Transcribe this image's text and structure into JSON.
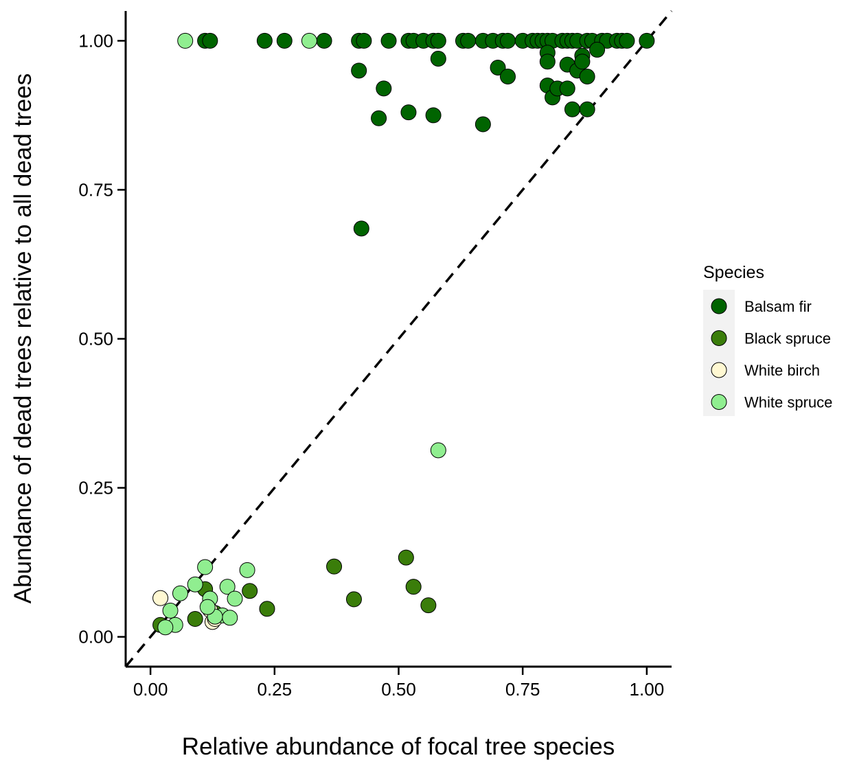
{
  "chart_data": {
    "type": "scatter",
    "title": "",
    "xlabel": "Relative abundance of focal tree species",
    "ylabel": "Abundance of dead trees relative to all dead trees",
    "xlim": [
      -0.05,
      1.05
    ],
    "ylim": [
      -0.05,
      1.05
    ],
    "x_ticks": [
      "0.00",
      "0.25",
      "0.50",
      "0.75",
      "1.00"
    ],
    "y_ticks": [
      "0.00",
      "0.25",
      "0.50",
      "0.75",
      "1.00"
    ],
    "x_tick_values": [
      0,
      0.25,
      0.5,
      0.75,
      1.0
    ],
    "y_tick_values": [
      0,
      0.25,
      0.5,
      0.75,
      1.0
    ],
    "reference_line": {
      "type": "identity",
      "style": "dashed",
      "color": "#000000"
    },
    "grid": false,
    "legend": {
      "title": "Species",
      "placement": "right"
    },
    "series": [
      {
        "name": "Balsam fir",
        "color": "#006400",
        "points": [
          [
            0.11,
            1.0
          ],
          [
            0.12,
            1.0
          ],
          [
            0.23,
            1.0
          ],
          [
            0.27,
            1.0
          ],
          [
            0.35,
            1.0
          ],
          [
            0.42,
            1.0
          ],
          [
            0.43,
            1.0
          ],
          [
            0.48,
            1.0
          ],
          [
            0.52,
            1.0
          ],
          [
            0.53,
            1.0
          ],
          [
            0.55,
            1.0
          ],
          [
            0.57,
            1.0
          ],
          [
            0.58,
            1.0
          ],
          [
            0.63,
            1.0
          ],
          [
            0.64,
            1.0
          ],
          [
            0.67,
            1.0
          ],
          [
            0.69,
            1.0
          ],
          [
            0.71,
            1.0
          ],
          [
            0.72,
            1.0
          ],
          [
            0.75,
            1.0
          ],
          [
            0.77,
            1.0
          ],
          [
            0.78,
            1.0
          ],
          [
            0.79,
            1.0
          ],
          [
            0.8,
            1.0
          ],
          [
            0.81,
            1.0
          ],
          [
            0.83,
            1.0
          ],
          [
            0.84,
            1.0
          ],
          [
            0.85,
            1.0
          ],
          [
            0.86,
            1.0
          ],
          [
            0.88,
            1.0
          ],
          [
            0.89,
            1.0
          ],
          [
            0.91,
            1.0
          ],
          [
            0.92,
            1.0
          ],
          [
            0.94,
            1.0
          ],
          [
            0.95,
            1.0
          ],
          [
            0.96,
            1.0
          ],
          [
            1.0,
            1.0
          ],
          [
            0.42,
            0.95
          ],
          [
            0.47,
            0.92
          ],
          [
            0.46,
            0.87
          ],
          [
            0.52,
            0.88
          ],
          [
            0.57,
            0.875
          ],
          [
            0.58,
            0.97
          ],
          [
            0.67,
            0.86
          ],
          [
            0.7,
            0.955
          ],
          [
            0.72,
            0.94
          ],
          [
            0.8,
            0.98
          ],
          [
            0.8,
            0.965
          ],
          [
            0.8,
            0.925
          ],
          [
            0.81,
            0.905
          ],
          [
            0.82,
            0.92
          ],
          [
            0.84,
            0.92
          ],
          [
            0.84,
            0.96
          ],
          [
            0.85,
            0.885
          ],
          [
            0.86,
            0.95
          ],
          [
            0.87,
            0.975
          ],
          [
            0.87,
            0.965
          ],
          [
            0.88,
            0.94
          ],
          [
            0.88,
            0.885
          ],
          [
            0.9,
            0.985
          ],
          [
            0.425,
            0.685
          ]
        ]
      },
      {
        "name": "Black spruce",
        "color": "#3A7D0A",
        "points": [
          [
            0.02,
            0.02
          ],
          [
            0.09,
            0.03
          ],
          [
            0.11,
            0.08
          ],
          [
            0.2,
            0.077
          ],
          [
            0.235,
            0.047
          ],
          [
            0.37,
            0.118
          ],
          [
            0.41,
            0.063
          ],
          [
            0.515,
            0.133
          ],
          [
            0.53,
            0.084
          ],
          [
            0.56,
            0.053
          ],
          [
            0.13,
            0.04
          ]
        ]
      },
      {
        "name": "White birch",
        "color": "#FFF8D2",
        "points": [
          [
            0.02,
            0.065
          ],
          [
            0.12,
            0.045
          ],
          [
            0.125,
            0.025
          ],
          [
            0.13,
            0.03
          ]
        ]
      },
      {
        "name": "White spruce",
        "color": "#90EE90",
        "points": [
          [
            0.07,
            1.0
          ],
          [
            0.32,
            1.0
          ],
          [
            0.58,
            0.313
          ],
          [
            0.11,
            0.117
          ],
          [
            0.195,
            0.112
          ],
          [
            0.09,
            0.088
          ],
          [
            0.06,
            0.073
          ],
          [
            0.155,
            0.084
          ],
          [
            0.12,
            0.064
          ],
          [
            0.17,
            0.064
          ],
          [
            0.04,
            0.044
          ],
          [
            0.145,
            0.036
          ],
          [
            0.16,
            0.032
          ],
          [
            0.05,
            0.02
          ],
          [
            0.03,
            0.016
          ],
          [
            0.13,
            0.034
          ],
          [
            0.115,
            0.05
          ]
        ]
      }
    ]
  }
}
